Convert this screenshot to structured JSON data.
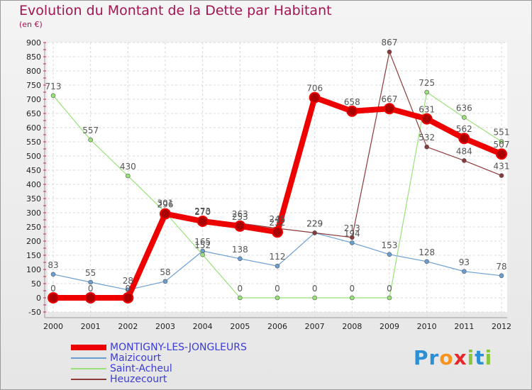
{
  "title": "Evolution du Montant de la Dette par Habitant",
  "subtitle": "(en €)",
  "logo": {
    "text": "Proxiti",
    "letters": [
      {
        "ch": "P",
        "color": "#2a8fd6"
      },
      {
        "ch": "r",
        "color": "#2a8fd6"
      },
      {
        "ch": "o",
        "color": "#f7941d"
      },
      {
        "ch": "x",
        "color": "#e8272a"
      },
      {
        "ch": "i",
        "color": "#8cc63f"
      },
      {
        "ch": "t",
        "color": "#2a8fd6"
      },
      {
        "ch": "i",
        "color": "#8cc63f"
      }
    ]
  },
  "chart_data": {
    "type": "line",
    "x": [
      "2000",
      "2001",
      "2002",
      "2003",
      "2004",
      "2005",
      "2006",
      "2007",
      "2008",
      "2009",
      "2010",
      "2011",
      "2012"
    ],
    "ylim": [
      -50,
      900
    ],
    "yticks": [
      "-50",
      "0",
      "50",
      "100",
      "150",
      "200",
      "250",
      "300",
      "350",
      "400",
      "450",
      "500",
      "550",
      "600",
      "650",
      "700",
      "750",
      "800",
      "850",
      "900"
    ],
    "grid": true,
    "legend_position": "bottom-left",
    "series": [
      {
        "name": "MONTIGNY-LES-JONGLEURS",
        "color": "#ee0000",
        "width": 8,
        "marker": 7,
        "values": [
          0,
          0,
          0,
          296,
          270,
          253,
          232,
          706,
          658,
          667,
          631,
          562,
          507
        ],
        "labels": [
          "0",
          "0",
          "0",
          "296",
          "270",
          "253",
          "232",
          "706",
          "658",
          "667",
          "631",
          "562",
          "507"
        ]
      },
      {
        "name": "Maizicourt",
        "color": "#6a9ed1",
        "width": 1.2,
        "marker": 3,
        "values": [
          83,
          55,
          28,
          58,
          165,
          138,
          112,
          229,
          194,
          153,
          128,
          93,
          78
        ],
        "labels": [
          "83",
          "55",
          "28",
          "58",
          "165",
          "138",
          "112",
          "229",
          "194",
          "153",
          "128",
          "93",
          "78"
        ]
      },
      {
        "name": "Saint-Acheul",
        "color": "#99e27a",
        "width": 1.2,
        "marker": 3,
        "values": [
          713,
          557,
          430,
          301,
          152,
          0,
          0,
          0,
          0,
          0,
          725,
          636,
          551
        ],
        "labels": [
          "713",
          "557",
          "430",
          "301",
          "152",
          "0",
          "0",
          "0",
          "0",
          "0",
          "725",
          "636",
          "551"
        ]
      },
      {
        "name": "Heuzecourt",
        "color": "#8b3a3a",
        "width": 1.2,
        "marker": 3,
        "values": [
          null,
          null,
          null,
          null,
          273,
          263,
          245,
          229,
          213,
          867,
          532,
          484,
          431
        ],
        "labels": [
          "",
          "",
          "",
          "",
          "273",
          "263",
          "245",
          "229",
          "213",
          "867",
          "532",
          "484",
          "431"
        ]
      }
    ]
  }
}
